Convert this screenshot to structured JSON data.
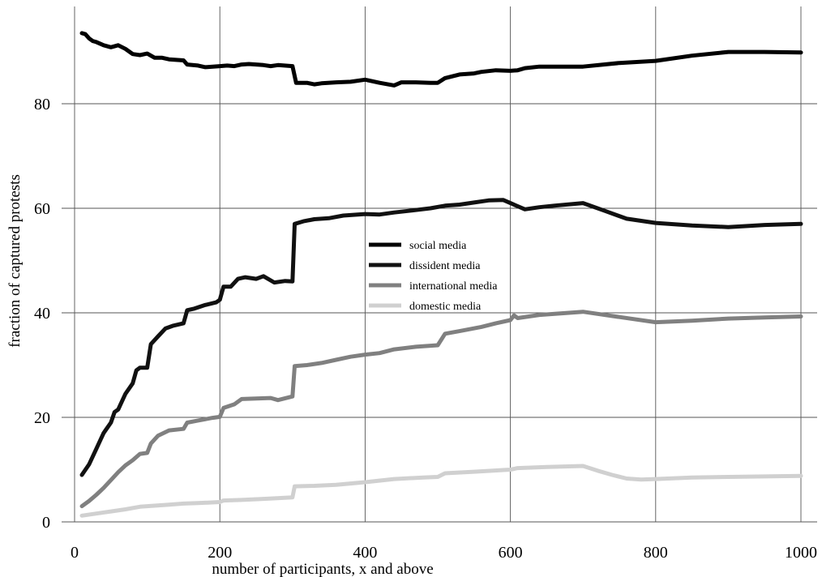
{
  "chart_data": {
    "type": "line",
    "title": "",
    "xlabel": "number of participants, x and above",
    "ylabel": "fraction of captured protests",
    "xlim": [
      0,
      1000
    ],
    "ylim": [
      0,
      95
    ],
    "xticks": [
      0,
      200,
      400,
      600,
      800,
      1000
    ],
    "yticks": [
      0,
      20,
      40,
      60,
      80
    ],
    "grid": true,
    "legend_position": "center",
    "series": [
      {
        "name": "social media",
        "color": "#000000",
        "points": [
          [
            10,
            93.5
          ],
          [
            15,
            93.3
          ],
          [
            20,
            92.5
          ],
          [
            25,
            92.0
          ],
          [
            30,
            91.8
          ],
          [
            40,
            91.2
          ],
          [
            50,
            90.8
          ],
          [
            60,
            91.2
          ],
          [
            70,
            90.5
          ],
          [
            80,
            89.5
          ],
          [
            90,
            89.3
          ],
          [
            100,
            89.6
          ],
          [
            110,
            88.8
          ],
          [
            120,
            88.8
          ],
          [
            130,
            88.5
          ],
          [
            150,
            88.3
          ],
          [
            155,
            87.5
          ],
          [
            170,
            87.3
          ],
          [
            180,
            87.0
          ],
          [
            200,
            87.2
          ],
          [
            210,
            87.3
          ],
          [
            220,
            87.2
          ],
          [
            230,
            87.5
          ],
          [
            240,
            87.6
          ],
          [
            260,
            87.4
          ],
          [
            270,
            87.2
          ],
          [
            280,
            87.4
          ],
          [
            300,
            87.2
          ],
          [
            305,
            84.0
          ],
          [
            320,
            84.0
          ],
          [
            330,
            83.7
          ],
          [
            340,
            83.9
          ],
          [
            360,
            84.1
          ],
          [
            380,
            84.2
          ],
          [
            400,
            84.6
          ],
          [
            420,
            84.0
          ],
          [
            440,
            83.5
          ],
          [
            450,
            84.1
          ],
          [
            470,
            84.1
          ],
          [
            490,
            84.0
          ],
          [
            500,
            84.0
          ],
          [
            510,
            84.9
          ],
          [
            530,
            85.6
          ],
          [
            550,
            85.8
          ],
          [
            560,
            86.1
          ],
          [
            580,
            86.4
          ],
          [
            600,
            86.3
          ],
          [
            610,
            86.4
          ],
          [
            620,
            86.8
          ],
          [
            640,
            87.1
          ],
          [
            660,
            87.1
          ],
          [
            700,
            87.1
          ],
          [
            750,
            87.8
          ],
          [
            800,
            88.2
          ],
          [
            850,
            89.2
          ],
          [
            900,
            89.9
          ],
          [
            950,
            89.9
          ],
          [
            1000,
            89.8
          ]
        ]
      },
      {
        "name": "dissident media",
        "color": "#111111",
        "points": [
          [
            10,
            9.0
          ],
          [
            20,
            11.0
          ],
          [
            30,
            14.0
          ],
          [
            40,
            17.0
          ],
          [
            50,
            19.0
          ],
          [
            55,
            21.0
          ],
          [
            60,
            21.5
          ],
          [
            70,
            24.5
          ],
          [
            80,
            26.5
          ],
          [
            85,
            29.0
          ],
          [
            90,
            29.5
          ],
          [
            100,
            29.5
          ],
          [
            105,
            34.0
          ],
          [
            115,
            35.5
          ],
          [
            125,
            37.0
          ],
          [
            135,
            37.5
          ],
          [
            150,
            38.0
          ],
          [
            155,
            40.5
          ],
          [
            165,
            40.8
          ],
          [
            180,
            41.5
          ],
          [
            195,
            42.0
          ],
          [
            200,
            42.5
          ],
          [
            205,
            45.0
          ],
          [
            215,
            45.0
          ],
          [
            225,
            46.5
          ],
          [
            235,
            46.8
          ],
          [
            250,
            46.5
          ],
          [
            260,
            47.0
          ],
          [
            275,
            45.8
          ],
          [
            290,
            46.1
          ],
          [
            300,
            46.0
          ],
          [
            303,
            57.0
          ],
          [
            315,
            57.5
          ],
          [
            330,
            57.9
          ],
          [
            350,
            58.1
          ],
          [
            370,
            58.6
          ],
          [
            400,
            58.9
          ],
          [
            420,
            58.8
          ],
          [
            440,
            59.2
          ],
          [
            460,
            59.5
          ],
          [
            490,
            60.0
          ],
          [
            510,
            60.5
          ],
          [
            530,
            60.7
          ],
          [
            550,
            61.1
          ],
          [
            570,
            61.5
          ],
          [
            590,
            61.6
          ],
          [
            600,
            61.0
          ],
          [
            620,
            59.8
          ],
          [
            640,
            60.2
          ],
          [
            660,
            60.5
          ],
          [
            700,
            61.0
          ],
          [
            730,
            59.5
          ],
          [
            760,
            58.0
          ],
          [
            800,
            57.2
          ],
          [
            850,
            56.7
          ],
          [
            900,
            56.4
          ],
          [
            950,
            56.8
          ],
          [
            1000,
            57.0
          ]
        ]
      },
      {
        "name": "international media",
        "color": "#808080",
        "points": [
          [
            10,
            3.0
          ],
          [
            20,
            4.0
          ],
          [
            30,
            5.2
          ],
          [
            40,
            6.5
          ],
          [
            50,
            8.0
          ],
          [
            60,
            9.5
          ],
          [
            70,
            10.8
          ],
          [
            80,
            11.8
          ],
          [
            90,
            13.0
          ],
          [
            100,
            13.2
          ],
          [
            105,
            15.0
          ],
          [
            115,
            16.5
          ],
          [
            130,
            17.5
          ],
          [
            150,
            17.8
          ],
          [
            155,
            19.0
          ],
          [
            170,
            19.4
          ],
          [
            190,
            19.9
          ],
          [
            200,
            20.1
          ],
          [
            205,
            21.8
          ],
          [
            220,
            22.5
          ],
          [
            230,
            23.5
          ],
          [
            250,
            23.6
          ],
          [
            270,
            23.7
          ],
          [
            280,
            23.3
          ],
          [
            300,
            24.0
          ],
          [
            303,
            29.8
          ],
          [
            320,
            30.0
          ],
          [
            340,
            30.4
          ],
          [
            360,
            31.0
          ],
          [
            380,
            31.6
          ],
          [
            400,
            32.0
          ],
          [
            420,
            32.3
          ],
          [
            440,
            33.0
          ],
          [
            470,
            33.5
          ],
          [
            500,
            33.8
          ],
          [
            510,
            36.0
          ],
          [
            530,
            36.5
          ],
          [
            560,
            37.3
          ],
          [
            580,
            38.0
          ],
          [
            600,
            38.6
          ],
          [
            605,
            39.5
          ],
          [
            610,
            39.0
          ],
          [
            640,
            39.6
          ],
          [
            700,
            40.2
          ],
          [
            750,
            39.2
          ],
          [
            800,
            38.2
          ],
          [
            850,
            38.5
          ],
          [
            900,
            38.9
          ],
          [
            950,
            39.1
          ],
          [
            1000,
            39.3
          ]
        ]
      },
      {
        "name": "domestic media",
        "color": "#d0d0d0",
        "points": [
          [
            10,
            1.2
          ],
          [
            30,
            1.6
          ],
          [
            50,
            2.0
          ],
          [
            70,
            2.4
          ],
          [
            90,
            2.9
          ],
          [
            110,
            3.1
          ],
          [
            130,
            3.3
          ],
          [
            150,
            3.5
          ],
          [
            170,
            3.6
          ],
          [
            200,
            3.8
          ],
          [
            205,
            4.1
          ],
          [
            230,
            4.2
          ],
          [
            260,
            4.4
          ],
          [
            300,
            4.7
          ],
          [
            303,
            6.8
          ],
          [
            330,
            6.9
          ],
          [
            360,
            7.1
          ],
          [
            400,
            7.6
          ],
          [
            440,
            8.2
          ],
          [
            480,
            8.5
          ],
          [
            500,
            8.6
          ],
          [
            510,
            9.3
          ],
          [
            550,
            9.6
          ],
          [
            600,
            10.0
          ],
          [
            610,
            10.3
          ],
          [
            650,
            10.5
          ],
          [
            700,
            10.7
          ],
          [
            720,
            9.8
          ],
          [
            740,
            9.0
          ],
          [
            760,
            8.3
          ],
          [
            780,
            8.1
          ],
          [
            800,
            8.2
          ],
          [
            850,
            8.5
          ],
          [
            900,
            8.6
          ],
          [
            1000,
            8.8
          ]
        ]
      }
    ]
  }
}
